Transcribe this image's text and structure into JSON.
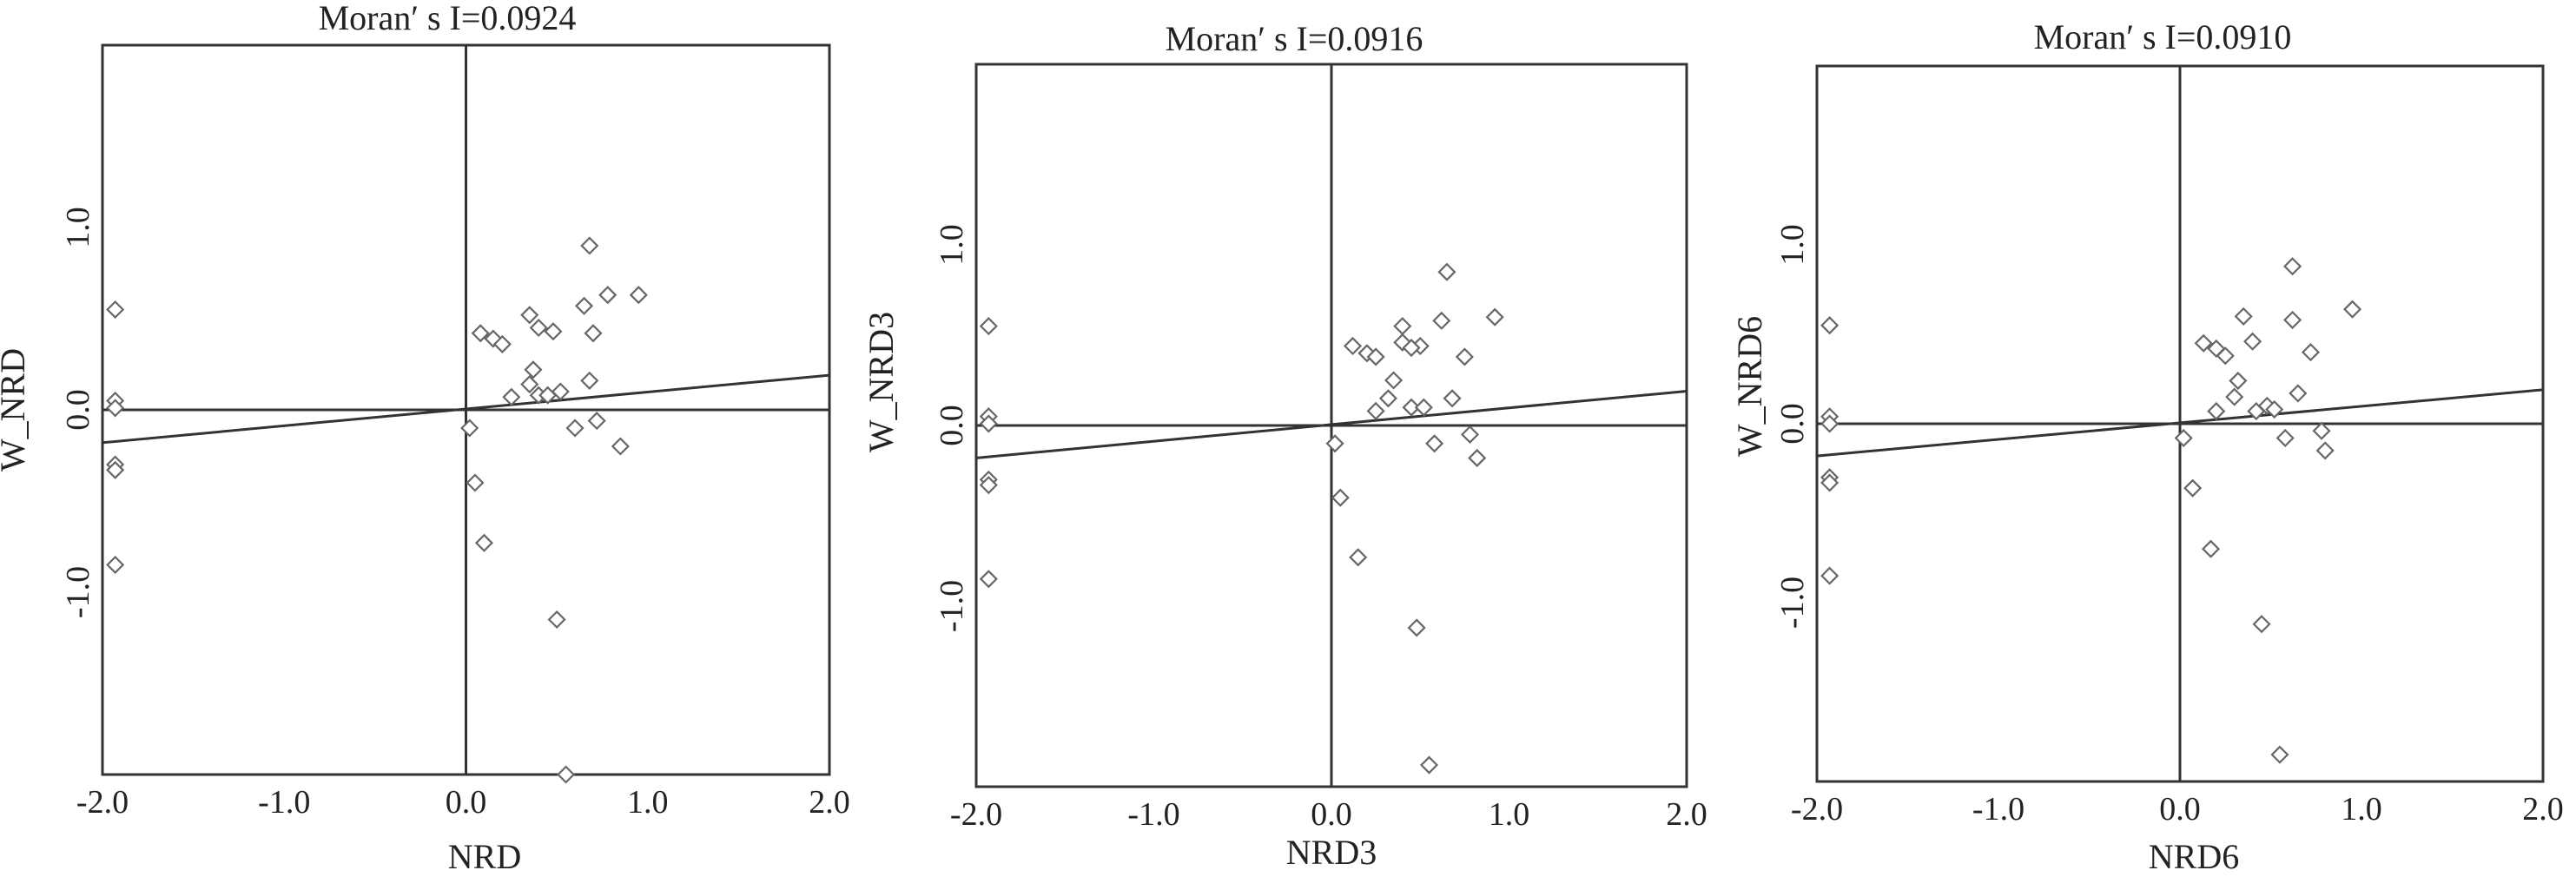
{
  "chart_data": [
    {
      "type": "scatter",
      "title": "Moran′ s I=0.0924",
      "xlabel": "NRD",
      "ylabel": "W_NRD",
      "xlim": [
        -2.0,
        2.0
      ],
      "ylim": [
        -2.0,
        2.0
      ],
      "xticks": [
        "-2.0",
        "-1.0",
        "0.0",
        "1.0",
        "2.0"
      ],
      "yticks": [
        "-1.0",
        "0.0",
        "1.0"
      ],
      "ytick_values": [
        -1.0,
        0.0,
        1.0
      ],
      "xtick_values": [
        -2.0,
        -1.0,
        0.0,
        1.0,
        2.0
      ],
      "fit_line": {
        "x": [
          -2.0,
          2.0
        ],
        "y": [
          -0.18,
          0.19
        ]
      },
      "x": [
        -1.93,
        -1.93,
        -1.93,
        -1.93,
        -1.93,
        -1.93,
        0.02,
        0.05,
        0.1,
        0.08,
        0.15,
        0.2,
        0.25,
        0.35,
        0.37,
        0.35,
        0.4,
        0.4,
        0.52,
        0.48,
        0.5,
        0.6,
        0.65,
        0.68,
        0.7,
        0.68,
        0.72,
        0.78,
        0.85,
        0.95,
        0.55,
        0.45
      ],
      "y": [
        0.55,
        0.05,
        0.01,
        -0.3,
        -0.33,
        -0.85,
        -0.1,
        -0.4,
        -0.73,
        0.42,
        0.39,
        0.36,
        0.07,
        0.14,
        0.22,
        0.52,
        0.45,
        0.08,
        0.1,
        0.43,
        -1.15,
        -0.1,
        0.57,
        0.9,
        0.42,
        0.16,
        -0.06,
        0.63,
        -0.2,
        0.63,
        -2.0,
        0.08
      ]
    },
    {
      "type": "scatter",
      "title": "Moran′ s I=0.0916",
      "xlabel": "NRD3",
      "ylabel": "W_NRD3",
      "xlim": [
        -2.0,
        2.0
      ],
      "ylim": [
        -2.0,
        2.0
      ],
      "xticks": [
        "-2.0",
        "-1.0",
        "0.0",
        "1.0",
        "2.0"
      ],
      "yticks": [
        "-1.0",
        "0.0",
        "1.0"
      ],
      "ytick_values": [
        -1.0,
        0.0,
        1.0
      ],
      "xtick_values": [
        -2.0,
        -1.0,
        0.0,
        1.0,
        2.0
      ],
      "fit_line": {
        "x": [
          -2.0,
          2.0
        ],
        "y": [
          -0.18,
          0.19
        ]
      },
      "x": [
        -1.93,
        -1.93,
        -1.93,
        -1.93,
        -1.93,
        -1.93,
        0.02,
        0.05,
        0.15,
        0.12,
        0.2,
        0.25,
        0.25,
        0.32,
        0.35,
        0.4,
        0.4,
        0.45,
        0.52,
        0.5,
        0.48,
        0.58,
        0.62,
        0.65,
        0.68,
        0.75,
        0.78,
        0.82,
        0.92,
        0.55,
        0.45
      ],
      "y": [
        0.55,
        0.05,
        0.01,
        -0.3,
        -0.33,
        -0.85,
        -0.1,
        -0.4,
        -0.73,
        0.44,
        0.4,
        0.08,
        0.38,
        0.15,
        0.25,
        0.55,
        0.46,
        0.1,
        0.1,
        0.44,
        -1.12,
        -0.1,
        0.58,
        0.85,
        0.15,
        0.38,
        -0.05,
        -0.18,
        0.6,
        -1.88,
        0.43
      ]
    },
    {
      "type": "scatter",
      "title": "Moran′ s I=0.0910",
      "xlabel": "NRD6",
      "ylabel": "W_NRD6",
      "xlim": [
        -2.0,
        2.0
      ],
      "ylim": [
        -2.0,
        2.0
      ],
      "xticks": [
        "-2.0",
        "-1.0",
        "0.0",
        "1.0",
        "2.0"
      ],
      "yticks": [
        "-1.0",
        "0.0",
        "1.0"
      ],
      "ytick_values": [
        -1.0,
        0.0,
        1.0
      ],
      "xtick_values": [
        -2.0,
        -1.0,
        0.0,
        1.0,
        2.0
      ],
      "fit_line": {
        "x": [
          -2.0,
          2.0
        ],
        "y": [
          -0.18,
          0.19
        ]
      },
      "x": [
        -1.93,
        -1.93,
        -1.93,
        -1.93,
        -1.93,
        -1.93,
        0.02,
        0.07,
        0.17,
        0.13,
        0.2,
        0.25,
        0.2,
        0.3,
        0.32,
        0.35,
        0.4,
        0.42,
        0.48,
        0.52,
        0.58,
        0.62,
        0.62,
        0.65,
        0.72,
        0.78,
        0.8,
        0.95,
        0.45,
        0.55
      ],
      "y": [
        0.55,
        0.04,
        0.0,
        -0.3,
        -0.33,
        -0.85,
        -0.08,
        -0.36,
        -0.7,
        0.45,
        0.42,
        0.38,
        0.07,
        0.15,
        0.24,
        0.6,
        0.46,
        0.07,
        0.1,
        0.08,
        -0.08,
        0.58,
        0.88,
        0.17,
        0.4,
        -0.04,
        -0.15,
        0.64,
        -1.12,
        -1.85
      ]
    }
  ]
}
